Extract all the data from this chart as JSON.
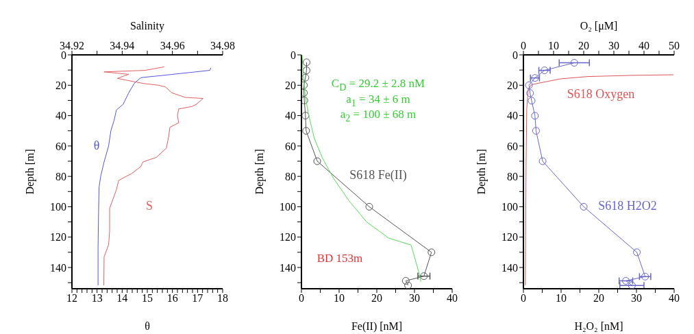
{
  "chart_data": [
    {
      "type": "line",
      "xlabel": "θ",
      "x2label": "Salinity",
      "ylabel": "Depth [m]",
      "xlim": [
        12,
        18
      ],
      "xticks": [
        12,
        {
          "value": 12.2,
          "label": null
        },
        {
          "value": 12.4,
          "label": null
        },
        {
          "value": 12.6,
          "label": null
        },
        {
          "value": 12.8,
          "label": null
        },
        13,
        {
          "value": 13.2,
          "label": null
        },
        {
          "value": 13.4,
          "label": null
        },
        {
          "value": 13.6,
          "label": null
        },
        {
          "value": 13.8,
          "label": null
        },
        14,
        {
          "value": 14.2,
          "label": null
        },
        {
          "value": 14.4,
          "label": null
        },
        {
          "value": 14.6,
          "label": null
        },
        {
          "value": 14.8,
          "label": null
        },
        15,
        {
          "value": 15.2,
          "label": null
        },
        {
          "value": 15.4,
          "label": null
        },
        {
          "value": 15.6,
          "label": null
        },
        {
          "value": 15.8,
          "label": null
        },
        16,
        {
          "value": 16.2,
          "label": null
        },
        {
          "value": 16.4,
          "label": null
        },
        {
          "value": 16.6,
          "label": null
        },
        {
          "value": 16.8,
          "label": null
        },
        17,
        {
          "value": 17.2,
          "label": null
        },
        {
          "value": 17.4,
          "label": null
        },
        {
          "value": 17.6,
          "label": null
        },
        {
          "value": 17.8,
          "label": null
        },
        18
      ],
      "x2lim": [
        34.92,
        34.98
      ],
      "x2ticks": [
        34.92,
        {
          "value": 34.93,
          "label": null
        },
        34.94,
        {
          "value": 34.95,
          "label": null
        },
        34.96,
        {
          "value": 34.97,
          "label": null
        },
        34.98
      ],
      "ylim": [
        154,
        0
      ],
      "yticks": [
        0,
        {
          "value": 10,
          "label": null
        },
        20,
        {
          "value": 30,
          "label": null
        },
        40,
        {
          "value": 50,
          "label": null
        },
        60,
        {
          "value": 70,
          "label": null
        },
        80,
        {
          "value": 90,
          "label": null
        },
        100,
        {
          "value": 110,
          "label": null
        },
        120,
        {
          "value": 130,
          "label": null
        },
        140,
        {
          "value": 150,
          "label": null
        }
      ],
      "series": [
        {
          "name": "θ",
          "color": "#5555dd",
          "x": [
            17.53,
            17.49,
            15.63,
            14.74,
            14.48,
            14.26,
            14.04,
            13.77,
            13.68,
            13.55,
            13.46,
            13.28,
            13.15,
            13.08,
            13.06,
            13.04,
            13.04
          ],
          "values": [
            8.5,
            10.2,
            13.5,
            15,
            18.8,
            25,
            32.5,
            36.3,
            43,
            50,
            60,
            70.5,
            79.6,
            87,
            104,
            127,
            151.8
          ]
        },
        {
          "name": "S",
          "color": "#e06060",
          "axis": "x2",
          "x": [
            34.9567,
            34.9492,
            34.9328,
            34.9426,
            34.9381,
            34.9483,
            34.9545,
            34.9572,
            34.9598,
            34.9651,
            34.9722,
            34.9696,
            34.9678,
            34.9625,
            34.962,
            34.9625,
            34.959,
            34.9585,
            34.9576,
            34.9536,
            34.9483,
            34.9474,
            34.9439,
            34.9386,
            34.9377,
            34.9364,
            34.935,
            34.935,
            34.9346,
            34.9328,
            34.9327
          ],
          "values": [
            7.9,
            10.2,
            11.2,
            12.8,
            15.5,
            18.8,
            20,
            21.1,
            25,
            28,
            28.7,
            32.5,
            34,
            35.6,
            40.1,
            44.7,
            47.7,
            53.8,
            61.4,
            67.5,
            70.5,
            73.6,
            78,
            82.7,
            88.8,
            94.8,
            101,
            116,
            125,
            133,
            151.8
          ]
        }
      ]
    },
    {
      "type": "line",
      "xlabel": "Fe(II) [nM]",
      "ylabel": "Depth [m]",
      "xlim": [
        0,
        40
      ],
      "xticks": [
        0,
        {
          "value": 5,
          "label": null
        },
        10,
        {
          "value": 15,
          "label": null
        },
        20,
        {
          "value": 25,
          "label": null
        },
        30,
        {
          "value": 35,
          "label": null
        },
        40
      ],
      "ylim": [
        154,
        0
      ],
      "yticks": [
        0,
        {
          "value": 10,
          "label": null
        },
        20,
        {
          "value": 30,
          "label": null
        },
        40,
        {
          "value": 50,
          "label": null
        },
        60,
        {
          "value": 70,
          "label": null
        },
        80,
        {
          "value": 90,
          "label": null
        },
        100,
        {
          "value": 110,
          "label": null
        },
        120,
        {
          "value": 130,
          "label": null
        },
        140,
        {
          "value": 150,
          "label": null
        }
      ],
      "annotations": [
        "C$_{D}$ = 29.2 ± 2.8 nM",
        "a$_{1}$ = 34 ± 6 m",
        "a$_{2}$ = 100 ± 68 m",
        "BD 153m"
      ],
      "series": [
        {
          "name": "S618 Fe(II)",
          "color": "#555555",
          "marker": "circle",
          "x": [
            1.36,
            1.36,
            1.06,
            0.65,
            0.65,
            0.77,
            1.06,
            1.24,
            4.19,
            18,
            34.5,
            32.5,
            27.7,
            28.3
          ],
          "values": [
            4.9,
            10.2,
            15,
            20,
            25,
            30,
            40,
            50,
            70,
            100,
            130,
            145.7,
            148.8,
            151.8
          ],
          "xerrors": [
            null,
            null,
            null,
            null,
            null,
            null,
            null,
            null,
            null,
            null,
            null,
            1.6,
            null,
            null
          ]
        },
        {
          "color": "#55dd55",
          "x": [
            0.18,
            0.47,
            1.06,
            1.95,
            3.42,
            5.49,
            8.44,
            12.6,
            17.3,
            23.2,
            29.1,
            31.2,
            31.7
          ],
          "values": [
            0,
            12.8,
            28,
            40,
            55,
            67.5,
            81,
            96,
            110,
            120.7,
            125.2,
            143.5,
            149.5
          ]
        }
      ]
    },
    {
      "type": "line",
      "xlabel": "H₂O₂ [nM]",
      "x2label": "O₂ [μM]",
      "ylabel": "Depth [m]",
      "xlim": [
        0,
        40
      ],
      "xticks": [
        0,
        {
          "value": 5,
          "label": null
        },
        10,
        {
          "value": 15,
          "label": null
        },
        20,
        {
          "value": 25,
          "label": null
        },
        30,
        {
          "value": 35,
          "label": null
        },
        40
      ],
      "x2lim": [
        0,
        50
      ],
      "x2ticks": [
        0,
        {
          "value": 5,
          "label": null
        },
        10,
        {
          "value": 15,
          "label": null
        },
        20,
        {
          "value": 25,
          "label": null
        },
        30,
        {
          "value": 35,
          "label": null
        },
        40,
        {
          "value": 45,
          "label": null
        },
        50
      ],
      "ylim": [
        154,
        0
      ],
      "yticks": [
        0,
        {
          "value": 10,
          "label": null
        },
        20,
        {
          "value": 30,
          "label": null
        },
        40,
        {
          "value": 50,
          "label": null
        },
        60,
        {
          "value": 70,
          "label": null
        },
        80,
        {
          "value": 90,
          "label": null
        },
        100,
        {
          "value": 110,
          "label": null
        },
        120,
        {
          "value": 130,
          "label": null
        },
        140,
        {
          "value": 150,
          "label": null
        }
      ],
      "series": [
        {
          "name": "S618 Oxygen",
          "color": "#dd5555",
          "axis": "x2",
          "x": [
            49.8,
            35.8,
            21.1,
            12.3,
            6.4,
            2.7,
            1.6,
            1.1,
            0.88,
            0.74,
            0.66
          ],
          "values": [
            13.1,
            13.5,
            14.3,
            15.8,
            18.1,
            19.6,
            22.6,
            35.6,
            73.6,
            119,
            151.8
          ]
        },
        {
          "name": "S618 H2O2",
          "color": "#6666cc",
          "marker": "circle",
          "x": [
            13.5,
            5.6,
            3.06,
            1.47,
            1.76,
            2.18,
            3.06,
            3.35,
            5.1,
            16,
            30.1,
            32.3,
            27.2,
            28.8
          ],
          "values": [
            5.2,
            10.2,
            15.2,
            20,
            25.2,
            30.2,
            40.1,
            50,
            70,
            100,
            130,
            146,
            148.8,
            151.8
          ],
          "xerrors": [
            4,
            1.5,
            1.2,
            null,
            null,
            null,
            null,
            null,
            null,
            null,
            null,
            1.5,
            1.8,
            3.2
          ]
        }
      ]
    }
  ]
}
